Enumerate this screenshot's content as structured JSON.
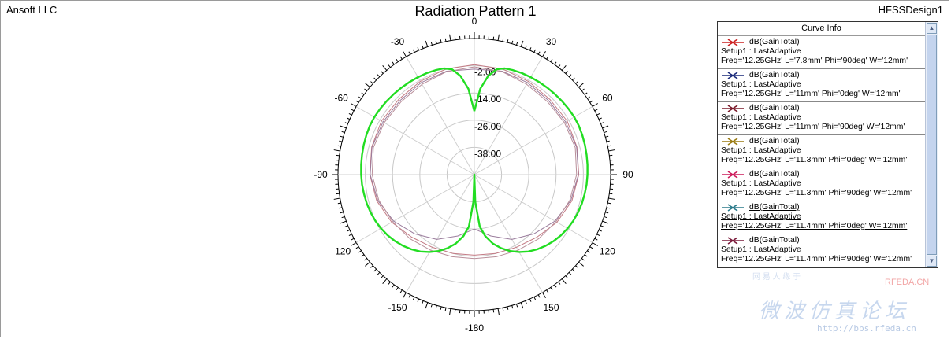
{
  "header": {
    "company": "Ansoft LLC",
    "design": "HFSSDesign1",
    "title": "Radiation Pattern 1"
  },
  "chart_data": {
    "type": "polar",
    "title": "Radiation Pattern 1",
    "angle_ticks": [
      "0",
      "30",
      "60",
      "90",
      "120",
      "150",
      "-180",
      "-150",
      "-120",
      "-90",
      "-60",
      "-30"
    ],
    "radial_ticks": [
      "-2.00",
      "-14.00",
      "-26.00",
      "-38.00"
    ],
    "radial_range": [
      -50,
      10
    ],
    "grid": true,
    "series": [
      {
        "name": "dB(GainTotal) Setup1 : LastAdaptive Freq='12.25GHz' L='11.4mm' Phi='0deg' W='12mm'",
        "color": "#22dd22",
        "angles": [
          0,
          4,
          8,
          12,
          16,
          20,
          25,
          30,
          35,
          40,
          45,
          50,
          55,
          60,
          65,
          70,
          75,
          80,
          85,
          90,
          95,
          100,
          105,
          110,
          115,
          120,
          125,
          130,
          135,
          140,
          145,
          150,
          155,
          160,
          165,
          170,
          174,
          178,
          180
        ],
        "values": [
          -22,
          -12,
          -6,
          -2.5,
          -1.3,
          -0.9,
          -0.6,
          -0.4,
          -0.2,
          0,
          0.2,
          0.4,
          0.6,
          0.8,
          0.8,
          0.6,
          0.4,
          0.2,
          0,
          -0.2,
          -0.4,
          -0.7,
          -1.0,
          -1.4,
          -1.9,
          -2.6,
          -3.4,
          -4.4,
          -5.6,
          -7.0,
          -8.6,
          -10.6,
          -12.8,
          -15.5,
          -18.5,
          -22.5,
          -27,
          -38,
          -50
        ]
      },
      {
        "name": "dB(GainTotal) Setup1 : LastAdaptive Freq='12.25GHz' L='7.8mm' Phi='90deg' W='12mm'",
        "color": "#c47a84",
        "angles": [
          0,
          15,
          30,
          45,
          60,
          75,
          90,
          105,
          120,
          135,
          150,
          165,
          180
        ],
        "values": [
          -1.5,
          -1.8,
          -2.5,
          -3.0,
          -2.8,
          -3.2,
          -4.0,
          -5.5,
          -8.0,
          -11.0,
          -13.0,
          -14.0,
          -14.5
        ]
      },
      {
        "name": "dB(GainTotal) Setup1 : LastAdaptive Freq='12.25GHz' L='11mm' Phi='0deg' W='12mm'",
        "color": "#9a7c9c",
        "angles": [
          0,
          15,
          30,
          45,
          60,
          75,
          90,
          105,
          120,
          135,
          150,
          165,
          180
        ],
        "values": [
          -3.5,
          -2.8,
          -3.2,
          -3.8,
          -3.6,
          -3.4,
          -4.2,
          -6.0,
          -9.0,
          -13.0,
          -17.0,
          -22.0,
          -26.0
        ]
      },
      {
        "name": "dB(GainTotal) Setup1 : LastAdaptive Freq='12.25GHz' L='11mm' Phi='90deg' W='12mm'",
        "color": "#b98f9a",
        "angles": [
          0,
          15,
          30,
          45,
          60,
          75,
          90,
          105,
          120,
          135,
          150,
          165,
          180
        ],
        "values": [
          -2.5,
          -3.0,
          -4.0,
          -4.5,
          -4.2,
          -4.0,
          -5.0,
          -6.5,
          -8.5,
          -10.0,
          -11.5,
          -12.5,
          -13.0
        ]
      }
    ]
  },
  "legend": {
    "header": "Curve Info",
    "items": [
      {
        "l1": "dB(GainTotal)",
        "l2": "Setup1 : LastAdaptive",
        "l3": "Freq='12.25GHz' L='7.8mm' Phi='90deg' W='12mm'",
        "color": "#cc2020",
        "selected": false
      },
      {
        "l1": "dB(GainTotal)",
        "l2": "Setup1 : LastAdaptive",
        "l3": "Freq='12.25GHz' L='11mm' Phi='0deg' W='12mm'",
        "color": "#1a2a7a",
        "selected": false
      },
      {
        "l1": "dB(GainTotal)",
        "l2": "Setup1 : LastAdaptive",
        "l3": "Freq='12.25GHz' L='11mm' Phi='90deg' W='12mm'",
        "color": "#7a1a2a",
        "selected": false
      },
      {
        "l1": "dB(GainTotal)",
        "l2": "Setup1 : LastAdaptive",
        "l3": "Freq='12.25GHz' L='11.3mm' Phi='0deg' W='12mm'",
        "color": "#9a7a10",
        "selected": false
      },
      {
        "l1": "dB(GainTotal)",
        "l2": "Setup1 : LastAdaptive",
        "l3": "Freq='12.25GHz' L='11.3mm' Phi='90deg' W='12mm'",
        "color": "#cc1a5a",
        "selected": false
      },
      {
        "l1": "dB(GainTotal)",
        "l2": "Setup1 : LastAdaptive",
        "l3": "Freq='12.25GHz' L='11.4mm' Phi='0deg' W='12mm'",
        "color": "#2a7a8a",
        "selected": true
      },
      {
        "l1": "dB(GainTotal)",
        "l2": "Setup1 : LastAdaptive",
        "l3": "Freq='12.25GHz' L='11.4mm' Phi='90deg' W='12mm'",
        "color": "#7a1a3a",
        "selected": false
      }
    ]
  },
  "scrollbar": {
    "up": "▲",
    "down": "▼"
  },
  "watermark": {
    "top": "网 易 人 缘 于",
    "site": "RFEDA.CN",
    "cn": "微波仿真论坛",
    "url": "http://bbs.rfeda.cn"
  }
}
